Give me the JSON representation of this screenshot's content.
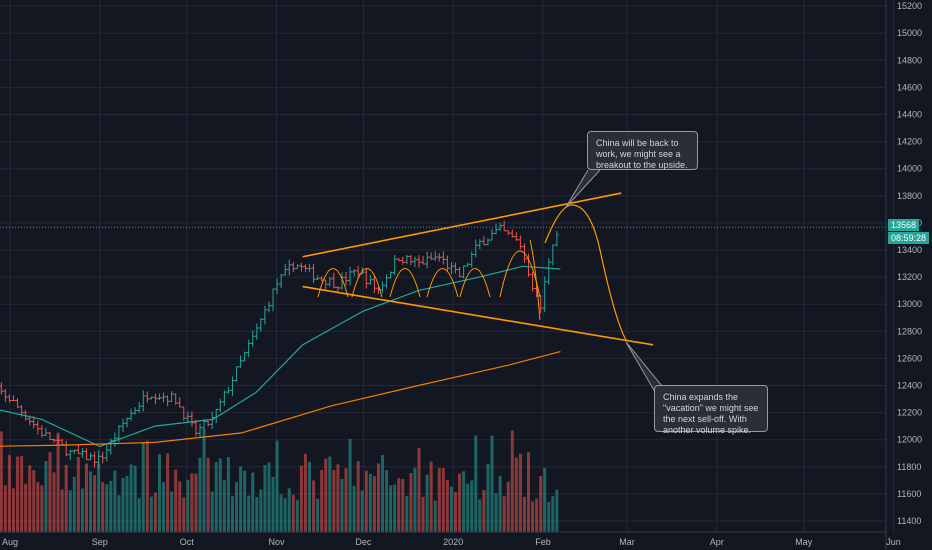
{
  "chart_data": {
    "type": "candlestick",
    "xlabel": "",
    "ylabel": "",
    "ylim": [
      11300,
      15200
    ],
    "y_ticks": [
      11400,
      11600,
      11800,
      12000,
      12200,
      12400,
      12600,
      12800,
      13000,
      13200,
      13400,
      13600,
      13800,
      14000,
      14200,
      14400,
      14600,
      14800,
      15000,
      15200
    ],
    "x_ticks": [
      "Aug",
      "Sep",
      "Oct",
      "Nov",
      "Dec",
      "2020",
      "Feb",
      "Mar",
      "Apr",
      "May",
      "Jun"
    ],
    "grid": true,
    "last_price": "13568",
    "countdown": "08:59:28",
    "colors": {
      "up": "#26a69a",
      "down": "#ef5350",
      "ma_fast": "#26a69a",
      "ma_slow": "#f57c00",
      "drawings": "#ff9800",
      "background": "#131722",
      "grid": "#252936"
    },
    "close_series": [
      {
        "date": "2019-07-22",
        "close": 12450
      },
      {
        "date": "2019-08-01",
        "close": 12300
      },
      {
        "date": "2019-08-12",
        "close": 12050
      },
      {
        "date": "2019-08-22",
        "close": 11900
      },
      {
        "date": "2019-09-01",
        "close": 11850
      },
      {
        "date": "2019-09-10",
        "close": 12150
      },
      {
        "date": "2019-09-18",
        "close": 12350
      },
      {
        "date": "2019-09-27",
        "close": 12300
      },
      {
        "date": "2019-10-04",
        "close": 12050
      },
      {
        "date": "2019-10-10",
        "close": 12150
      },
      {
        "date": "2019-10-18",
        "close": 12500
      },
      {
        "date": "2019-10-25",
        "close": 12800
      },
      {
        "date": "2019-11-01",
        "close": 13150
      },
      {
        "date": "2019-11-07",
        "close": 13300
      },
      {
        "date": "2019-11-15",
        "close": 13200
      },
      {
        "date": "2019-11-22",
        "close": 13150
      },
      {
        "date": "2019-11-29",
        "close": 13250
      },
      {
        "date": "2019-12-06",
        "close": 13100
      },
      {
        "date": "2019-12-13",
        "close": 13350
      },
      {
        "date": "2019-12-20",
        "close": 13300
      },
      {
        "date": "2019-12-27",
        "close": 13350
      },
      {
        "date": "2020-01-03",
        "close": 13200
      },
      {
        "date": "2020-01-10",
        "close": 13450
      },
      {
        "date": "2020-01-17",
        "close": 13550
      },
      {
        "date": "2020-01-24",
        "close": 13450
      },
      {
        "date": "2020-01-29",
        "close": 13100
      },
      {
        "date": "2020-01-31",
        "close": 12950
      },
      {
        "date": "2020-02-04",
        "close": 13450
      },
      {
        "date": "2020-02-07",
        "close": 13568
      }
    ],
    "ma_fast": [
      {
        "date": "2019-07-22",
        "value": 12250
      },
      {
        "date": "2019-08-12",
        "value": 12150
      },
      {
        "date": "2019-09-01",
        "value": 11950
      },
      {
        "date": "2019-09-20",
        "value": 12100
      },
      {
        "date": "2019-10-10",
        "value": 12150
      },
      {
        "date": "2019-10-25",
        "value": 12350
      },
      {
        "date": "2019-11-10",
        "value": 12700
      },
      {
        "date": "2019-12-01",
        "value": 12950
      },
      {
        "date": "2019-12-20",
        "value": 13100
      },
      {
        "date": "2020-01-10",
        "value": 13200
      },
      {
        "date": "2020-01-25",
        "value": 13280
      },
      {
        "date": "2020-02-07",
        "value": 13260
      }
    ],
    "ma_slow": [
      {
        "date": "2019-07-22",
        "value": 11950
      },
      {
        "date": "2019-08-20",
        "value": 11960
      },
      {
        "date": "2019-09-20",
        "value": 11980
      },
      {
        "date": "2019-10-20",
        "value": 12050
      },
      {
        "date": "2019-11-20",
        "value": 12250
      },
      {
        "date": "2019-12-20",
        "value": 12400
      },
      {
        "date": "2020-01-20",
        "value": 12550
      },
      {
        "date": "2020-02-07",
        "value": 12650
      }
    ],
    "trendlines": [
      {
        "from": {
          "date": "2019-11-10",
          "price": 13350
        },
        "to": {
          "date": "2020-02-28",
          "price": 13820
        }
      },
      {
        "from": {
          "date": "2019-11-10",
          "price": 13130
        },
        "to": {
          "date": "2020-03-10",
          "price": 12700
        }
      }
    ],
    "annotations": [
      {
        "text": "China will be back to work, we might see a breakout to the upside."
      },
      {
        "text": "China expands the \"vacation\" we might see the next sell-off. With another volume spike."
      }
    ]
  }
}
